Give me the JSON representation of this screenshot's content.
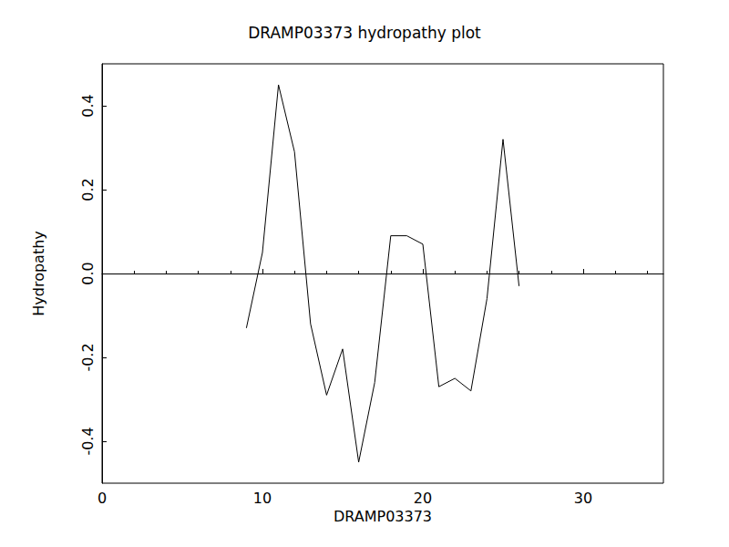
{
  "chart_data": {
    "type": "line",
    "title": "DRAMP03373 hydropathy plot",
    "x_label": "DRAMP03373",
    "y_label": "Hydropathy",
    "x": [
      9,
      10,
      11,
      12,
      13,
      14,
      15,
      16,
      17,
      18,
      19,
      20,
      21,
      22,
      23,
      24,
      25,
      26
    ],
    "values": [
      -0.13,
      0.05,
      0.45,
      0.29,
      -0.12,
      -0.29,
      -0.18,
      -0.45,
      -0.26,
      0.09,
      0.09,
      0.07,
      -0.27,
      -0.25,
      -0.28,
      -0.06,
      0.32,
      -0.03
    ],
    "color": "#000000",
    "xlim": [
      0,
      35
    ],
    "xticks": [
      0,
      10,
      20,
      30
    ],
    "ylim": [
      -0.5,
      0.5
    ],
    "yticks": [
      -0.4,
      -0.2,
      {
        "value": 0,
        "label": "0.0"
      },
      0.2,
      0.4
    ]
  }
}
